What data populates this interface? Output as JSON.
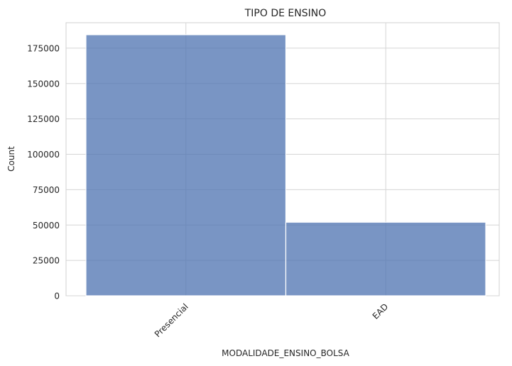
{
  "chart_data": {
    "type": "bar",
    "title": "TIPO DE ENSINO",
    "xlabel": "MODALIDADE_ENSINO_BOLSA",
    "ylabel": "Count",
    "categories": [
      "Presencial",
      "EAD"
    ],
    "values": [
      184500,
      52000
    ],
    "ylim": [
      0,
      193000
    ],
    "yticks": [
      0,
      25000,
      50000,
      75000,
      100000,
      125000,
      150000,
      175000
    ],
    "grid": true,
    "bar_color": "#4c72b0",
    "bar_opacity": 0.75
  }
}
